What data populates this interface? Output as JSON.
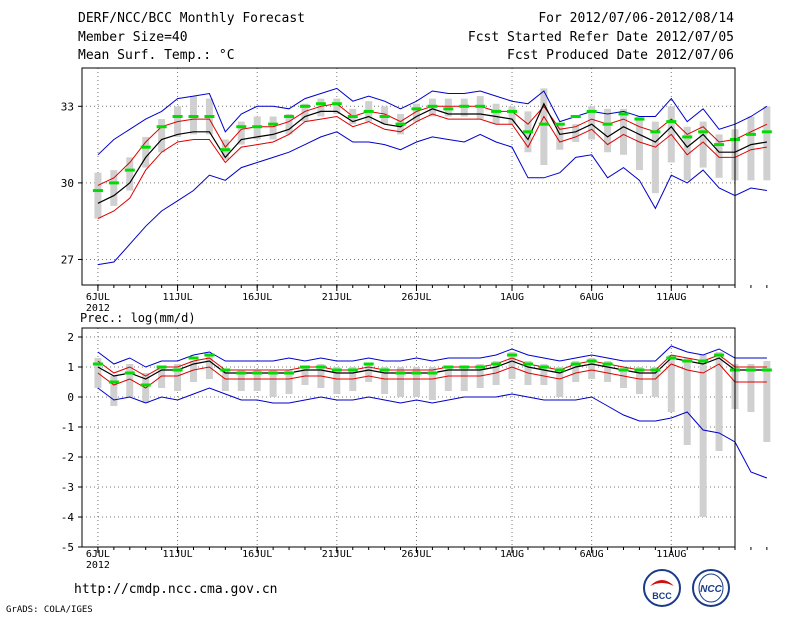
{
  "header": {
    "title": "DERF/NCC/BCC Monthly Forecast",
    "member_size": "Member Size=40",
    "variable": "Mean Surf. Temp.: °C",
    "for_period": "For 2012/07/06-2012/08/14",
    "fcst_started": "Fcst Started Refer Date 2012/07/05",
    "fcst_produced": "Fcst Produced Date 2012/07/06"
  },
  "footer": {
    "url": "http://cmdp.ncc.cma.gov.cn",
    "credit": "GrADS: COLA/IGES",
    "logo_bcc": "BCC",
    "logo_ncc": "NCC"
  },
  "colors": {
    "box": "#d0d0d0",
    "mean": "#00dd00",
    "center": "#000000",
    "spread": "#dd0000",
    "envelope": "#0000cc"
  },
  "chart_data": [
    {
      "type": "line",
      "title": "Mean Surf. Temp.: °C",
      "xlabel": "",
      "ylabel": "",
      "ylim": [
        26,
        34.5
      ],
      "yticks": [
        27,
        30,
        33
      ],
      "xlim": [
        0,
        41
      ],
      "xtick_labels": [
        "6JUL",
        "11JUL",
        "16JUL",
        "21JUL",
        "26JUL",
        "1AUG",
        "6AUG",
        "11AUG"
      ],
      "xtick_days": [
        1,
        6,
        11,
        16,
        21,
        27,
        32,
        37
      ],
      "xtick_sublabel": "2012",
      "grid": true,
      "series": [
        {
          "name": "upper envelope",
          "color": "#0000cc",
          "values": [
            31.1,
            31.7,
            32.1,
            32.5,
            32.8,
            33.3,
            33.4,
            33.5,
            32.0,
            32.7,
            33.0,
            33.0,
            32.9,
            33.3,
            33.5,
            33.7,
            33.2,
            33.4,
            33.2,
            32.9,
            33.2,
            33.6,
            33.5,
            33.5,
            33.6,
            33.4,
            33.2,
            33.1,
            33.6,
            32.4,
            32.6,
            32.8,
            32.7,
            32.8,
            32.6,
            32.6,
            33.3,
            32.4,
            32.9,
            32.1,
            32.3,
            32.6,
            33.0
          ]
        },
        {
          "name": "box top",
          "color": "#d0d0d0",
          "values": [
            30.4,
            30.5,
            31.0,
            31.8,
            32.5,
            33.0,
            33.4,
            33.3,
            31.7,
            32.4,
            32.6,
            32.6,
            32.7,
            33.1,
            33.3,
            33.3,
            32.9,
            33.2,
            33.0,
            32.7,
            33.1,
            33.3,
            33.3,
            33.3,
            33.4,
            33.1,
            33.0,
            32.8,
            33.7,
            32.3,
            32.3,
            33.0,
            32.9,
            32.9,
            32.6,
            32.4,
            33.0,
            32.2,
            32.4,
            31.9,
            32.1,
            32.6,
            33.0
          ]
        },
        {
          "name": "box bottom",
          "color": "#d0d0d0",
          "values": [
            28.6,
            29.1,
            29.7,
            30.6,
            31.2,
            31.8,
            31.9,
            31.9,
            30.9,
            31.5,
            31.7,
            31.7,
            31.9,
            32.4,
            32.6,
            32.7,
            32.3,
            32.4,
            32.3,
            31.9,
            32.4,
            32.6,
            32.6,
            32.6,
            32.5,
            32.3,
            32.3,
            31.2,
            30.7,
            31.3,
            31.6,
            31.7,
            31.2,
            31.1,
            30.5,
            29.6,
            30.8,
            30.1,
            30.6,
            30.2,
            30.1,
            30.1,
            30.1
          ]
        },
        {
          "name": "upper spread",
          "color": "#dd0000",
          "values": [
            29.9,
            30.2,
            30.8,
            31.6,
            32.2,
            32.4,
            32.5,
            32.5,
            31.4,
            32.1,
            32.2,
            32.2,
            32.4,
            32.8,
            33.0,
            33.1,
            32.6,
            32.8,
            32.7,
            32.4,
            32.8,
            33.0,
            33.0,
            33.0,
            33.0,
            32.8,
            32.8,
            32.3,
            33.0,
            32.1,
            32.2,
            32.5,
            32.3,
            32.5,
            32.2,
            32.0,
            32.5,
            31.9,
            32.2,
            31.6,
            31.7,
            32.0,
            32.3
          ]
        },
        {
          "name": "ensemble mean",
          "color": "#00dd00",
          "values": [
            29.7,
            30.0,
            30.5,
            31.4,
            32.2,
            32.6,
            32.6,
            32.6,
            31.3,
            32.2,
            32.2,
            32.3,
            32.6,
            33.0,
            33.1,
            33.1,
            32.6,
            32.8,
            32.6,
            32.3,
            32.9,
            33.0,
            32.9,
            33.0,
            33.0,
            32.8,
            32.8,
            32.0,
            32.3,
            32.3,
            32.6,
            32.8,
            32.3,
            32.7,
            32.5,
            32.0,
            32.4,
            31.8,
            32.0,
            31.5,
            31.7,
            31.9,
            32.0
          ]
        },
        {
          "name": "center",
          "color": "#000000",
          "values": [
            29.2,
            29.5,
            30.0,
            31.0,
            31.7,
            31.9,
            32.0,
            32.0,
            31.0,
            31.7,
            31.8,
            31.9,
            32.1,
            32.6,
            32.8,
            32.8,
            32.4,
            32.6,
            32.3,
            32.2,
            32.6,
            32.9,
            32.7,
            32.7,
            32.7,
            32.6,
            32.5,
            31.7,
            33.1,
            31.9,
            32.0,
            32.3,
            31.8,
            32.2,
            31.9,
            31.6,
            32.2,
            31.4,
            31.9,
            31.2,
            31.2,
            31.5,
            31.6
          ]
        },
        {
          "name": "lower spread",
          "color": "#dd0000",
          "values": [
            28.6,
            28.9,
            29.4,
            30.5,
            31.2,
            31.6,
            31.7,
            31.7,
            30.8,
            31.4,
            31.5,
            31.6,
            31.9,
            32.4,
            32.5,
            32.6,
            32.2,
            32.4,
            32.1,
            32.0,
            32.4,
            32.7,
            32.5,
            32.5,
            32.5,
            32.3,
            32.3,
            31.4,
            32.6,
            31.6,
            31.8,
            32.1,
            31.5,
            31.9,
            31.6,
            31.4,
            31.9,
            31.1,
            31.6,
            31.0,
            31.0,
            31.3,
            31.4
          ]
        },
        {
          "name": "lower envelope",
          "color": "#0000cc",
          "values": [
            26.8,
            26.9,
            27.6,
            28.3,
            28.9,
            29.3,
            29.7,
            30.3,
            30.1,
            30.6,
            30.8,
            31.0,
            31.2,
            31.5,
            31.8,
            32.0,
            31.6,
            31.6,
            31.5,
            31.3,
            31.6,
            31.8,
            31.7,
            31.6,
            31.9,
            31.6,
            31.4,
            30.2,
            30.2,
            30.4,
            31.0,
            31.1,
            30.2,
            30.6,
            30.1,
            29.0,
            30.3,
            30.0,
            30.5,
            29.8,
            29.5,
            29.8,
            29.7
          ]
        }
      ]
    },
    {
      "type": "line",
      "title": "Prec.: log(mm/d)",
      "xlabel": "",
      "ylabel": "",
      "ylim": [
        -5,
        2.3
      ],
      "yticks": [
        -5,
        -4,
        -3,
        -2,
        -1,
        0,
        1,
        2
      ],
      "xlim": [
        0,
        41
      ],
      "xtick_labels": [
        "6JUL",
        "11JUL",
        "16JUL",
        "21JUL",
        "26JUL",
        "1AUG",
        "6AUG",
        "11AUG"
      ],
      "xtick_days": [
        1,
        6,
        11,
        16,
        21,
        27,
        32,
        37
      ],
      "xtick_sublabel": "2012",
      "grid": true,
      "series": [
        {
          "name": "upper envelope",
          "color": "#0000cc",
          "values": [
            1.5,
            1.1,
            1.3,
            1.0,
            1.2,
            1.2,
            1.4,
            1.5,
            1.2,
            1.2,
            1.2,
            1.2,
            1.3,
            1.2,
            1.3,
            1.2,
            1.2,
            1.3,
            1.2,
            1.2,
            1.3,
            1.2,
            1.3,
            1.3,
            1.3,
            1.4,
            1.6,
            1.4,
            1.3,
            1.2,
            1.3,
            1.4,
            1.3,
            1.2,
            1.2,
            1.2,
            1.7,
            1.5,
            1.4,
            1.6,
            1.3,
            1.3,
            1.3
          ]
        },
        {
          "name": "box top",
          "color": "#d0d0d0",
          "values": [
            1.3,
            0.7,
            1.1,
            0.8,
            1.0,
            1.1,
            1.2,
            1.4,
            0.9,
            0.9,
            0.9,
            0.9,
            0.9,
            1.0,
            1.1,
            1.0,
            1.0,
            1.1,
            1.0,
            1.0,
            1.0,
            1.0,
            1.0,
            1.0,
            1.1,
            1.2,
            1.5,
            1.2,
            1.1,
            1.0,
            1.2,
            1.3,
            1.2,
            1.0,
            1.0,
            1.0,
            1.4,
            1.3,
            1.4,
            1.5,
            1.1,
            1.1,
            1.2
          ]
        },
        {
          "name": "box bottom",
          "color": "#d0d0d0",
          "values": [
            0.3,
            -0.3,
            0.0,
            -0.2,
            0.3,
            0.2,
            0.5,
            0.6,
            0.2,
            0.2,
            0.2,
            0.0,
            0.1,
            0.4,
            0.3,
            0.1,
            0.2,
            0.5,
            0.1,
            0.0,
            0.0,
            -0.1,
            0.2,
            0.2,
            0.3,
            0.4,
            0.6,
            0.4,
            0.4,
            0.0,
            0.5,
            0.6,
            0.5,
            0.3,
            0.1,
            0.0,
            -0.5,
            -1.6,
            -4.0,
            -1.8,
            -0.4,
            -0.5,
            -1.5
          ]
        },
        {
          "name": "upper spread",
          "color": "#dd0000",
          "values": [
            1.2,
            0.8,
            1.0,
            0.7,
            1.0,
            1.0,
            1.2,
            1.3,
            0.9,
            0.9,
            0.9,
            0.9,
            0.9,
            1.0,
            1.0,
            0.9,
            0.9,
            1.0,
            0.9,
            0.9,
            0.9,
            0.9,
            1.0,
            1.0,
            1.0,
            1.1,
            1.3,
            1.1,
            1.0,
            0.9,
            1.1,
            1.2,
            1.1,
            1.0,
            0.9,
            0.9,
            1.4,
            1.3,
            1.2,
            1.4,
            1.0,
            1.0,
            1.0
          ]
        },
        {
          "name": "ensemble mean",
          "color": "#00dd00",
          "values": [
            1.1,
            0.5,
            0.8,
            0.4,
            1.0,
            0.9,
            1.3,
            1.4,
            0.9,
            0.8,
            0.8,
            0.8,
            0.8,
            1.0,
            1.0,
            0.9,
            0.9,
            1.1,
            0.9,
            0.8,
            0.8,
            0.8,
            1.0,
            1.0,
            1.0,
            1.1,
            1.4,
            1.1,
            1.0,
            0.9,
            1.1,
            1.2,
            1.1,
            0.9,
            0.9,
            0.9,
            1.3,
            1.2,
            1.2,
            1.4,
            0.9,
            0.9,
            0.9
          ]
        },
        {
          "name": "center",
          "color": "#000000",
          "values": [
            1.0,
            0.7,
            0.8,
            0.6,
            0.9,
            0.9,
            1.1,
            1.2,
            0.8,
            0.8,
            0.8,
            0.8,
            0.8,
            0.9,
            0.9,
            0.8,
            0.8,
            0.9,
            0.8,
            0.8,
            0.8,
            0.8,
            0.9,
            0.9,
            0.9,
            1.0,
            1.2,
            1.0,
            0.9,
            0.8,
            1.0,
            1.1,
            1.0,
            0.9,
            0.8,
            0.8,
            1.3,
            1.2,
            1.1,
            1.3,
            0.9,
            0.9,
            0.9
          ]
        },
        {
          "name": "lower spread",
          "color": "#dd0000",
          "values": [
            0.8,
            0.4,
            0.6,
            0.3,
            0.7,
            0.7,
            0.9,
            1.0,
            0.6,
            0.6,
            0.6,
            0.6,
            0.6,
            0.7,
            0.7,
            0.6,
            0.6,
            0.7,
            0.6,
            0.6,
            0.6,
            0.6,
            0.7,
            0.7,
            0.7,
            0.8,
            1.0,
            0.8,
            0.7,
            0.6,
            0.8,
            0.9,
            0.8,
            0.7,
            0.6,
            0.6,
            1.1,
            0.9,
            0.8,
            1.1,
            0.5,
            0.5,
            0.5
          ]
        },
        {
          "name": "lower envelope",
          "color": "#0000cc",
          "values": [
            0.3,
            -0.1,
            0.0,
            -0.2,
            0.0,
            -0.1,
            0.1,
            0.3,
            0.1,
            -0.1,
            -0.1,
            -0.2,
            -0.2,
            -0.1,
            0.0,
            -0.1,
            -0.1,
            0.0,
            -0.1,
            -0.2,
            -0.1,
            -0.2,
            -0.1,
            0.0,
            0.0,
            0.0,
            0.1,
            0.0,
            -0.1,
            -0.1,
            -0.1,
            0.0,
            -0.3,
            -0.6,
            -0.8,
            -0.8,
            -0.7,
            -0.5,
            -1.1,
            -1.2,
            -1.5,
            -2.5,
            -2.7
          ]
        }
      ]
    }
  ]
}
